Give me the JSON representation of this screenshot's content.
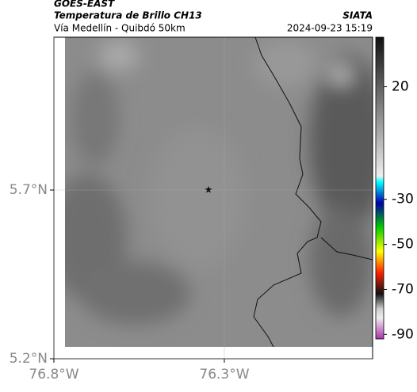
{
  "header": {
    "satellite": "GOES-EAST",
    "product": "Temperatura de Brillo CH13",
    "route": "Vía Medellín - Quibdó 50km",
    "source": "SIATA",
    "timestamp": "2024-09-23 15:19"
  },
  "map": {
    "xlim": [
      -76.8,
      -75.865
    ],
    "ylim": [
      5.2,
      6.153
    ],
    "xticks": [
      {
        "value": -76.8,
        "label": "76.8°W"
      },
      {
        "value": -76.3,
        "label": "76.3°W"
      }
    ],
    "yticks": [
      {
        "value": 5.2,
        "label": "5.2°N"
      },
      {
        "value": 5.7,
        "label": "5.7°N"
      }
    ]
  },
  "colorbar": {
    "clim": [
      42,
      -92
    ],
    "ticks": [
      20,
      -30,
      -50,
      -70,
      -90
    ]
  }
}
